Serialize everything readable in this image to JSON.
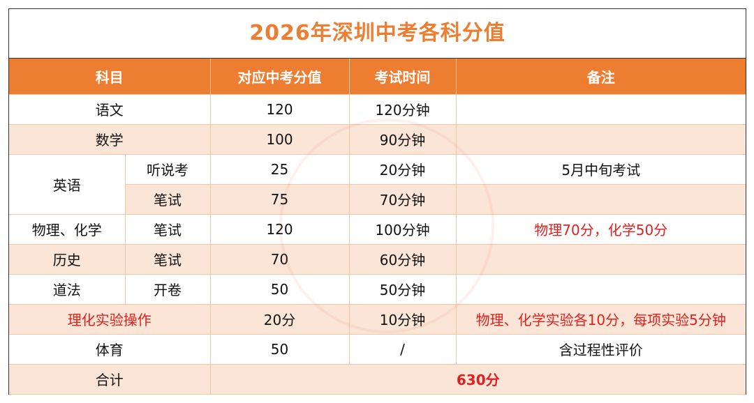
{
  "title": "2026年深圳中考各科分值",
  "headers": {
    "subject": "科目",
    "score": "对应中考分值",
    "time": "考试时间",
    "note": "备注"
  },
  "rows": {
    "chinese": {
      "subject": "语文",
      "score": "120",
      "time": "120分钟",
      "note": ""
    },
    "math": {
      "subject": "数学",
      "score": "100",
      "time": "90分钟",
      "note": ""
    },
    "english": {
      "subject": "英语",
      "listening": {
        "part": "听说考",
        "score": "25",
        "time": "20分钟",
        "note": "5月中旬考试"
      },
      "written": {
        "part": "笔试",
        "score": "75",
        "time": "70分钟",
        "note": ""
      }
    },
    "physchem": {
      "subject": "物理、化学",
      "part": "笔试",
      "score": "120",
      "time": "100分钟",
      "note": "物理70分，化学50分"
    },
    "history": {
      "subject": "历史",
      "part": "笔试",
      "score": "70",
      "time": "60分钟",
      "note": ""
    },
    "ethics": {
      "subject": "道法",
      "part": "开卷",
      "score": "50",
      "time": "50分钟",
      "note": ""
    },
    "lab": {
      "subject": "理化实验操作",
      "score": "20分",
      "time": "10分钟",
      "note": "物理、化学实验各10分，每项实验5分钟"
    },
    "pe": {
      "subject": "体育",
      "score": "50",
      "time": "/",
      "note": "含过程性评价"
    },
    "total": {
      "subject": "合计",
      "value": "630分"
    }
  }
}
